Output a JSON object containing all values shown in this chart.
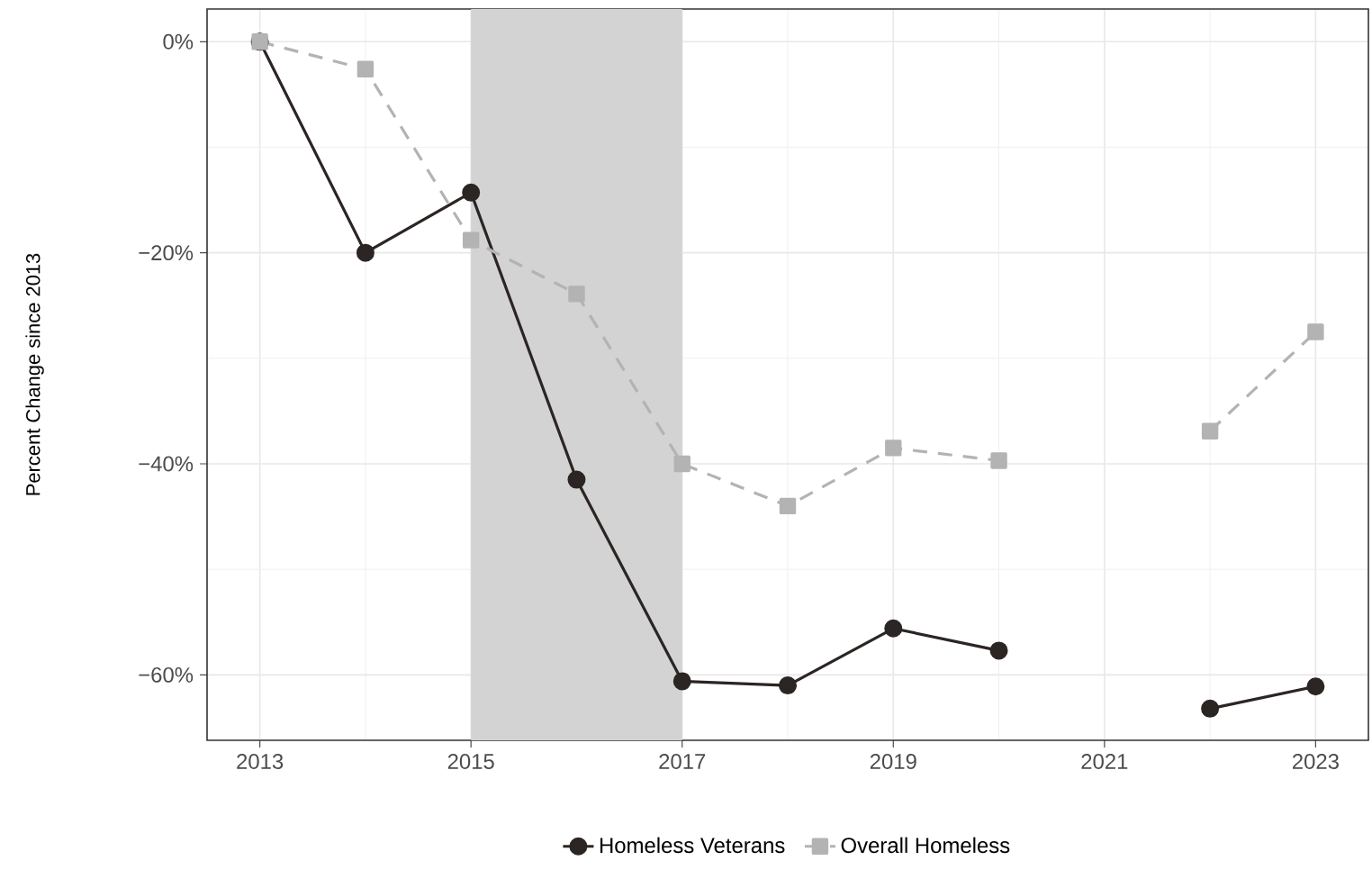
{
  "chart_data": {
    "type": "line",
    "ylabel": "Percent Change since 2013",
    "x": [
      2013,
      2014,
      2015,
      2016,
      2017,
      2018,
      2019,
      2020,
      2021,
      2022,
      2023
    ],
    "series": [
      {
        "name": "Homeless Veterans",
        "color": "#2b2523",
        "marker": "circle",
        "line_style": "solid",
        "values": [
          0,
          -20,
          -14.3,
          -41.5,
          -60.6,
          -61.0,
          -55.6,
          -57.7,
          null,
          -63.2,
          -61.1
        ]
      },
      {
        "name": "Overall Homeless",
        "color": "#b3b3b3",
        "marker": "square",
        "line_style": "dashed",
        "values": [
          0,
          -2.6,
          -18.8,
          -23.9,
          -40,
          -44.0,
          -38.5,
          -39.7,
          null,
          -36.9,
          -27.5
        ]
      }
    ],
    "xlim": [
      2012.5,
      2023.5
    ],
    "ylim": [
      -66.2,
      3.1
    ],
    "xticks": [
      2013,
      2015,
      2017,
      2019,
      2021,
      2023
    ],
    "yticks": [
      {
        "value": 0,
        "label": "0%"
      },
      {
        "value": -20,
        "label": "−20%"
      },
      {
        "value": -40,
        "label": "−40%"
      },
      {
        "value": -60,
        "label": "−60%"
      }
    ],
    "bands": [
      {
        "axis": "x",
        "from": 2015,
        "to": 2017,
        "color": "#d3d3d3"
      }
    ],
    "grid": true,
    "legend": "bottom"
  }
}
